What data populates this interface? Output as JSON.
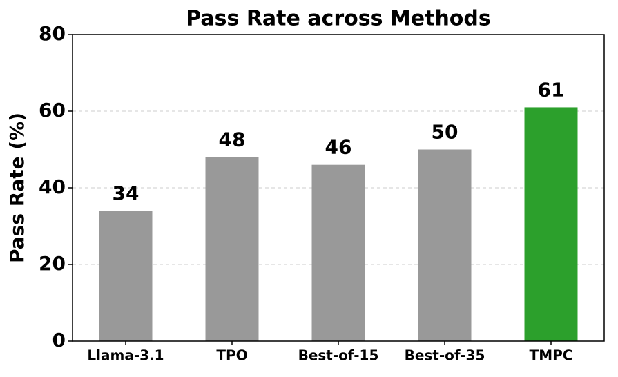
{
  "chart_data": {
    "type": "bar",
    "title": "Pass Rate across Methods",
    "y_label": "Pass Rate (%)",
    "categories": [
      "Llama-3.1",
      "TPO",
      "Best-of-15",
      "Best-of-35",
      "TMPC"
    ],
    "values": [
      34,
      48,
      46,
      50,
      61
    ],
    "colors": [
      "#999999",
      "#999999",
      "#999999",
      "#999999",
      "#2ca02c"
    ],
    "ylim": [
      0,
      80
    ],
    "yticks": [
      0,
      20,
      40,
      60,
      80
    ],
    "grid": true
  }
}
